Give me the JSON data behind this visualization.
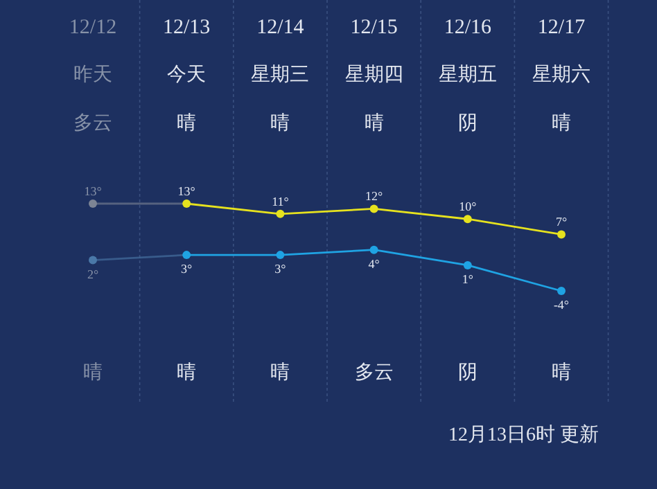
{
  "chart_data": {
    "type": "line",
    "categories": [
      "12/12",
      "12/13",
      "12/14",
      "12/15",
      "12/16",
      "12/17"
    ],
    "series": [
      {
        "color": "#e6e21e",
        "colors": [
          "#7c8494",
          "#e6e21e",
          "#e6e21e",
          "#e6e21e",
          "#e6e21e",
          "#e6e21e"
        ],
        "values": [
          13,
          13,
          11,
          12,
          10,
          7
        ],
        "value_labels": [
          "13°",
          "13°",
          "11°",
          "12°",
          "10°",
          "7°"
        ]
      },
      {
        "color": "#1fa3e3",
        "colors": [
          "#4a78a8",
          "#1fa3e3",
          "#1fa3e3",
          "#1fa3e3",
          "#1fa3e3",
          "#1fa3e3"
        ],
        "values": [
          2,
          3,
          3,
          4,
          1,
          -4
        ],
        "value_labels": [
          "2°",
          "3°",
          "3°",
          "4°",
          "1°",
          "-4°"
        ]
      }
    ],
    "marker": "circle",
    "grid": "x",
    "annotations": [
      "昨天",
      "今天",
      "星期三",
      "星期四",
      "星期五",
      "星期六",
      "多云",
      "晴",
      "晴",
      "晴",
      "阴",
      "晴",
      "晴",
      "晴",
      "晴",
      "多云",
      "阴",
      "晴",
      "12月13日6时 更新"
    ]
  }
}
